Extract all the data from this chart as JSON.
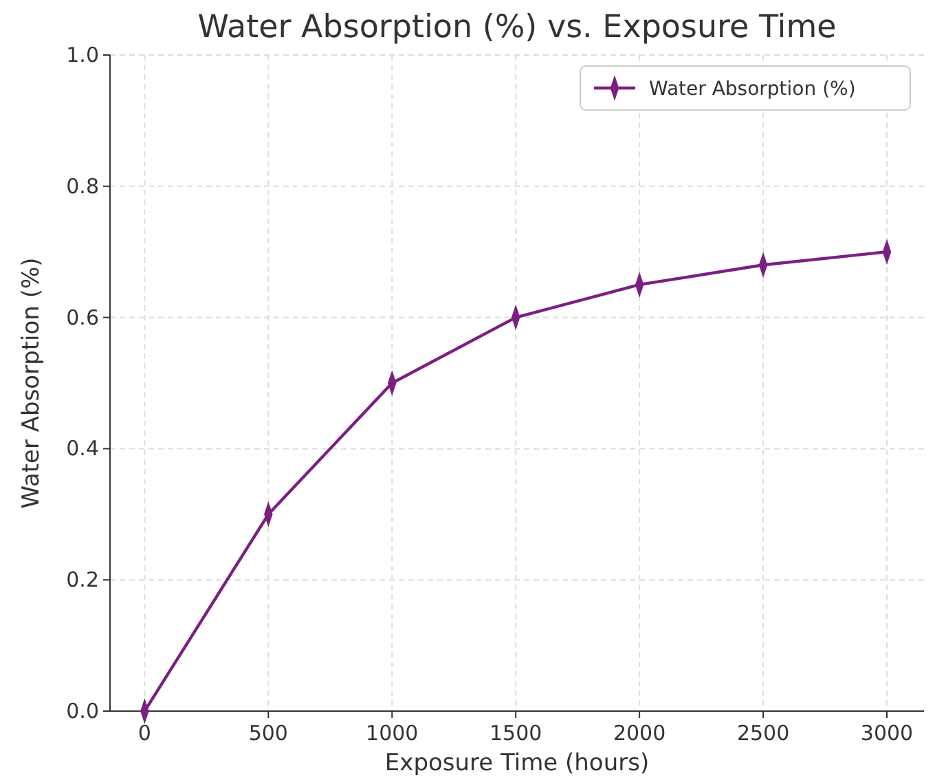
{
  "chart_data": {
    "type": "line",
    "title": "Water Absorption (%) vs. Exposure Time",
    "xlabel": "Exposure Time (hours)",
    "ylabel": "Water Absorption (%)",
    "x": [
      0,
      500,
      1000,
      1500,
      2000,
      2500,
      3000
    ],
    "series": [
      {
        "name": "Water Absorption (%)",
        "color": "#7b1f82",
        "values": [
          0,
          0.3,
          0.5,
          0.6,
          0.65,
          0.68,
          0.7
        ]
      }
    ],
    "xlim": [
      -140,
      3150
    ],
    "ylim": [
      0,
      1
    ],
    "xticks": [
      0,
      500,
      1000,
      1500,
      2000,
      2500,
      3000
    ],
    "yticks": [
      {
        "value": 0,
        "label": "0.0"
      },
      {
        "value": 0.2,
        "label": "0.2"
      },
      {
        "value": 0.4,
        "label": "0.4"
      },
      {
        "value": 0.6,
        "label": "0.6"
      },
      {
        "value": 0.8,
        "label": "0.8"
      },
      {
        "value": 1,
        "label": "1.0"
      }
    ],
    "grid": true,
    "legend": "top right",
    "marker": "diamond",
    "line_style": "solid"
  }
}
